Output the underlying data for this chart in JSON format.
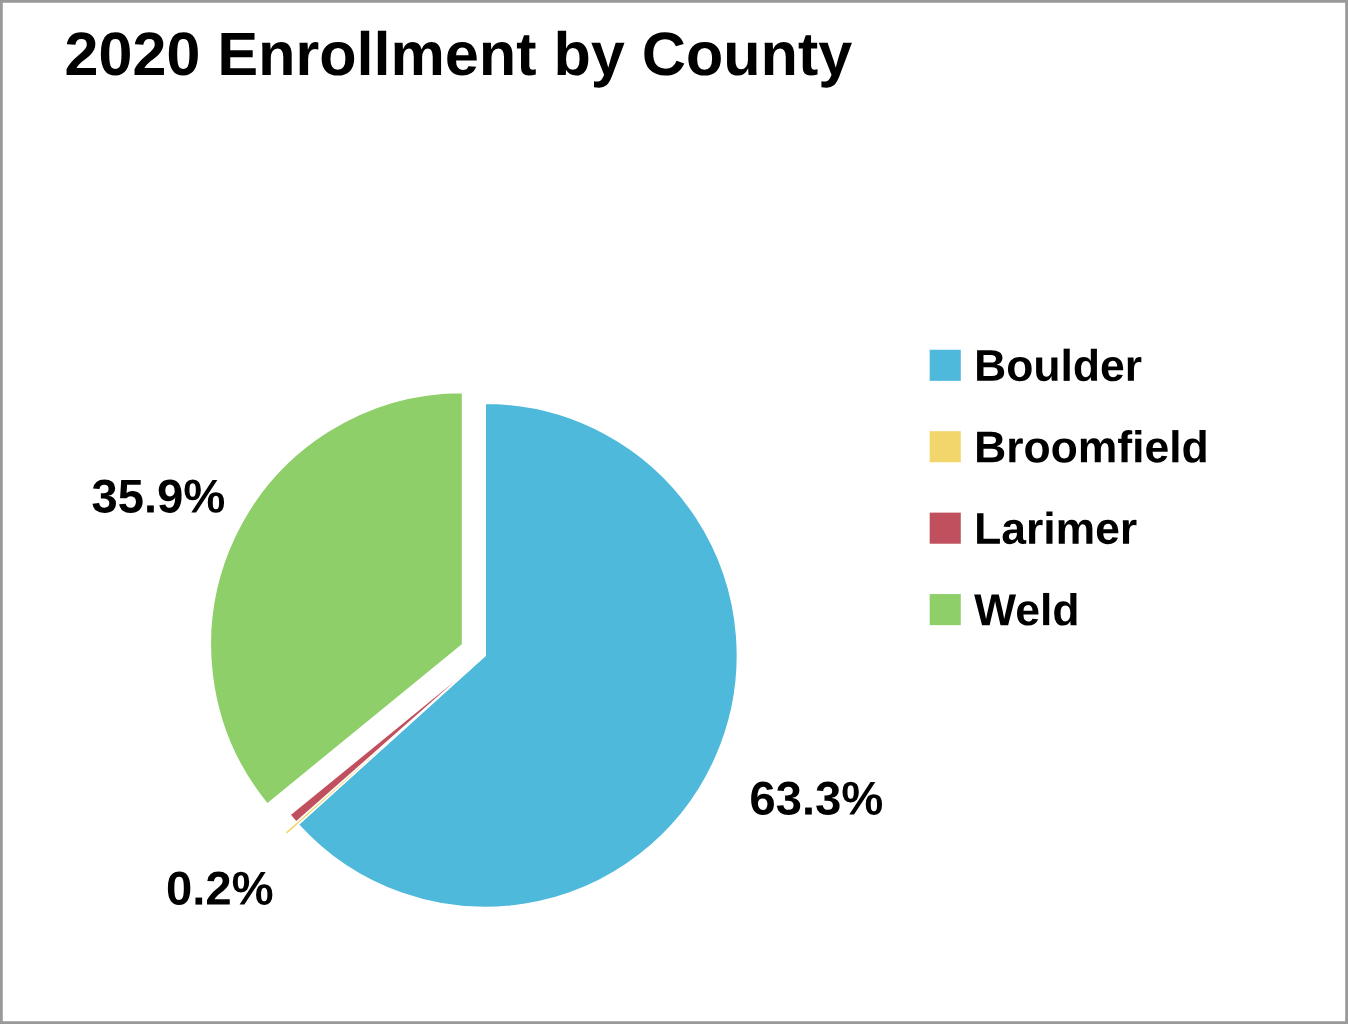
{
  "chart_data": {
    "type": "pie",
    "title": "2020 Enrollment by County",
    "categories": [
      "Boulder",
      "Broomfield",
      "Larimer",
      "Weld"
    ],
    "values": [
      63.3,
      0.2,
      0.6,
      35.9
    ],
    "value_labels": [
      "63.3%",
      "0.2%",
      null,
      "35.9%"
    ],
    "colors": [
      "#4fb9dc",
      "#f2d56b",
      "#c0505e",
      "#8fcf6a"
    ],
    "legend": "right"
  }
}
